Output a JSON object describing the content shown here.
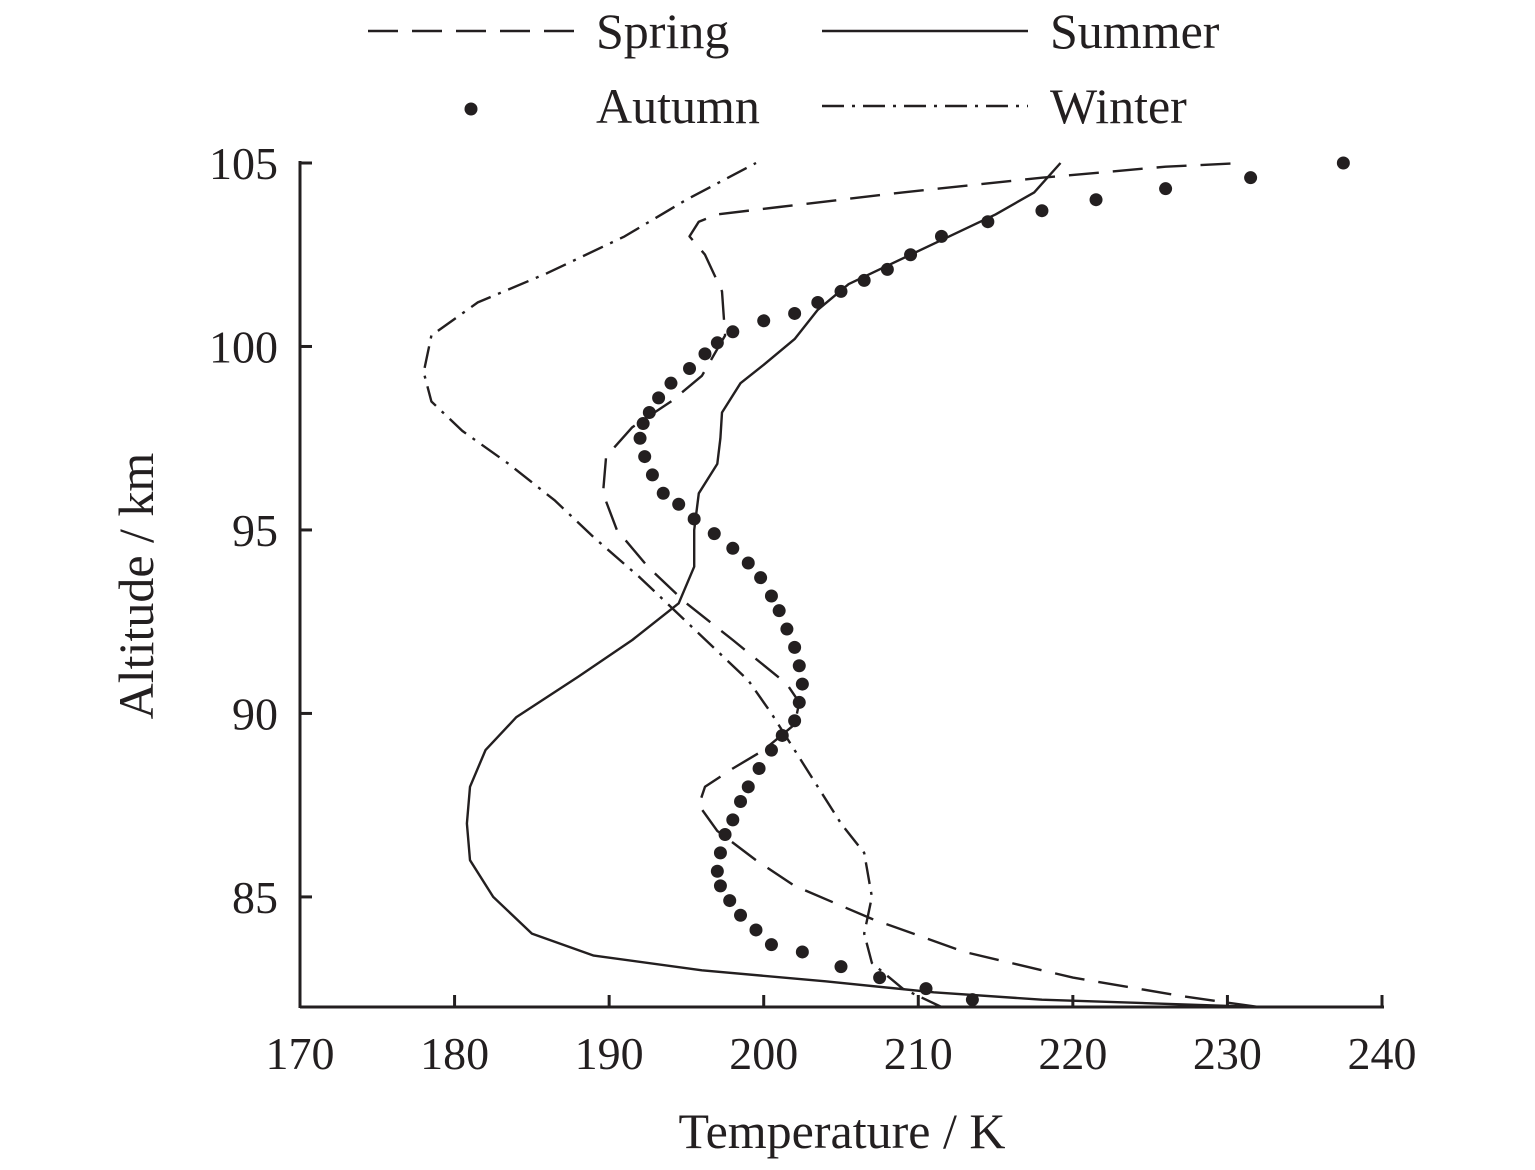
{
  "chart_data": {
    "type": "line",
    "title": "",
    "xlabel": "Temperature / K",
    "ylabel": "Altitude / km",
    "xlim": [
      170,
      240
    ],
    "ylim": [
      82,
      105
    ],
    "xticks": [
      170,
      180,
      190,
      200,
      210,
      220,
      230,
      240
    ],
    "yticks": [
      85,
      90,
      95,
      100,
      105
    ],
    "grid": false,
    "legend_position": "top",
    "colors": {
      "ink": "#231f20"
    },
    "series": [
      {
        "name": "Spring",
        "style": "dashed",
        "points": [
          [
            232.0,
            82.0
          ],
          [
            227.0,
            82.3
          ],
          [
            220.0,
            82.8
          ],
          [
            213.0,
            83.5
          ],
          [
            207.0,
            84.4
          ],
          [
            202.0,
            85.3
          ],
          [
            199.5,
            86.0
          ],
          [
            197.0,
            86.8
          ],
          [
            195.8,
            87.5
          ],
          [
            196.2,
            88.0
          ],
          [
            198.0,
            88.5
          ],
          [
            200.0,
            89.0
          ],
          [
            202.0,
            89.7
          ],
          [
            202.3,
            90.3
          ],
          [
            201.5,
            90.8
          ],
          [
            198.0,
            92.0
          ],
          [
            195.0,
            93.0
          ],
          [
            192.5,
            94.0
          ],
          [
            190.5,
            95.0
          ],
          [
            189.6,
            96.0
          ],
          [
            189.8,
            97.0
          ],
          [
            191.5,
            97.8
          ],
          [
            194.0,
            98.5
          ],
          [
            196.0,
            99.2
          ],
          [
            197.5,
            100.3
          ],
          [
            197.3,
            101.5
          ],
          [
            196.2,
            102.5
          ],
          [
            195.2,
            103.0
          ],
          [
            195.8,
            103.4
          ],
          [
            197.0,
            103.6
          ],
          [
            201.0,
            103.8
          ],
          [
            209.0,
            104.2
          ],
          [
            218.0,
            104.6
          ],
          [
            226.0,
            104.9
          ],
          [
            231.0,
            105.0
          ]
        ]
      },
      {
        "name": "Summer",
        "style": "solid",
        "points": [
          [
            232.0,
            82.0
          ],
          [
            225.0,
            82.1
          ],
          [
            218.0,
            82.2
          ],
          [
            211.0,
            82.4
          ],
          [
            204.0,
            82.7
          ],
          [
            196.0,
            83.0
          ],
          [
            189.0,
            83.4
          ],
          [
            185.0,
            84.0
          ],
          [
            182.5,
            85.0
          ],
          [
            181.0,
            86.0
          ],
          [
            180.8,
            87.0
          ],
          [
            181.0,
            88.0
          ],
          [
            182.0,
            89.0
          ],
          [
            184.0,
            89.9
          ],
          [
            188.0,
            91.0
          ],
          [
            191.5,
            92.0
          ],
          [
            194.5,
            93.0
          ],
          [
            195.5,
            94.0
          ],
          [
            195.5,
            95.0
          ],
          [
            195.8,
            96.0
          ],
          [
            197.0,
            96.8
          ],
          [
            197.2,
            97.5
          ],
          [
            197.3,
            98.2
          ],
          [
            198.5,
            99.0
          ],
          [
            200.0,
            99.5
          ],
          [
            202.0,
            100.2
          ],
          [
            203.5,
            101.0
          ],
          [
            205.5,
            101.7
          ],
          [
            208.0,
            102.2
          ],
          [
            212.0,
            103.0
          ],
          [
            215.0,
            103.6
          ],
          [
            217.5,
            104.2
          ],
          [
            219.2,
            105.0
          ]
        ]
      },
      {
        "name": "Autumn",
        "style": "dotted",
        "points": [
          [
            213.5,
            82.2
          ],
          [
            210.5,
            82.5
          ],
          [
            207.5,
            82.8
          ],
          [
            205.0,
            83.1
          ],
          [
            202.5,
            83.5
          ],
          [
            200.5,
            83.7
          ],
          [
            199.5,
            84.1
          ],
          [
            198.5,
            84.5
          ],
          [
            197.8,
            84.9
          ],
          [
            197.2,
            85.3
          ],
          [
            197.0,
            85.7
          ],
          [
            197.2,
            86.2
          ],
          [
            197.5,
            86.7
          ],
          [
            198.0,
            87.1
          ],
          [
            198.5,
            87.6
          ],
          [
            199.0,
            88.0
          ],
          [
            199.7,
            88.5
          ],
          [
            200.5,
            89.0
          ],
          [
            201.2,
            89.4
          ],
          [
            202.0,
            89.8
          ],
          [
            202.3,
            90.3
          ],
          [
            202.5,
            90.8
          ],
          [
            202.3,
            91.3
          ],
          [
            202.0,
            91.8
          ],
          [
            201.5,
            92.3
          ],
          [
            201.0,
            92.8
          ],
          [
            200.5,
            93.2
          ],
          [
            199.8,
            93.7
          ],
          [
            199.0,
            94.1
          ],
          [
            198.0,
            94.5
          ],
          [
            196.8,
            94.9
          ],
          [
            195.5,
            95.3
          ],
          [
            194.5,
            95.7
          ],
          [
            193.5,
            96.0
          ],
          [
            192.8,
            96.5
          ],
          [
            192.3,
            97.0
          ],
          [
            192.0,
            97.5
          ],
          [
            192.2,
            97.9
          ],
          [
            192.6,
            98.2
          ],
          [
            193.2,
            98.6
          ],
          [
            194.0,
            99.0
          ],
          [
            195.2,
            99.4
          ],
          [
            196.2,
            99.8
          ],
          [
            197.0,
            100.1
          ],
          [
            198.0,
            100.4
          ],
          [
            200.0,
            100.7
          ],
          [
            202.0,
            100.9
          ],
          [
            203.5,
            101.2
          ],
          [
            205.0,
            101.5
          ],
          [
            206.5,
            101.8
          ],
          [
            208.0,
            102.1
          ],
          [
            209.5,
            102.5
          ],
          [
            211.5,
            103.0
          ],
          [
            214.5,
            103.4
          ],
          [
            218.0,
            103.7
          ],
          [
            221.5,
            104.0
          ],
          [
            226.0,
            104.3
          ],
          [
            231.5,
            104.6
          ],
          [
            237.5,
            105.0
          ]
        ]
      },
      {
        "name": "Winter",
        "style": "dash-dot",
        "points": [
          [
            211.5,
            82.0
          ],
          [
            209.0,
            82.5
          ],
          [
            207.0,
            83.2
          ],
          [
            206.5,
            84.0
          ],
          [
            207.0,
            85.0
          ],
          [
            206.5,
            86.2
          ],
          [
            205.0,
            87.0
          ],
          [
            203.5,
            88.0
          ],
          [
            202.0,
            89.0
          ],
          [
            200.5,
            90.0
          ],
          [
            199.0,
            90.9
          ],
          [
            197.0,
            91.7
          ],
          [
            194.5,
            92.7
          ],
          [
            192.0,
            93.7
          ],
          [
            189.0,
            94.8
          ],
          [
            186.5,
            95.8
          ],
          [
            183.5,
            96.8
          ],
          [
            180.5,
            97.7
          ],
          [
            178.5,
            98.5
          ],
          [
            178.0,
            99.3
          ],
          [
            178.5,
            100.3
          ],
          [
            181.5,
            101.2
          ],
          [
            186.0,
            102.0
          ],
          [
            191.0,
            103.0
          ],
          [
            195.0,
            104.0
          ],
          [
            199.5,
            105.0
          ]
        ]
      }
    ]
  }
}
